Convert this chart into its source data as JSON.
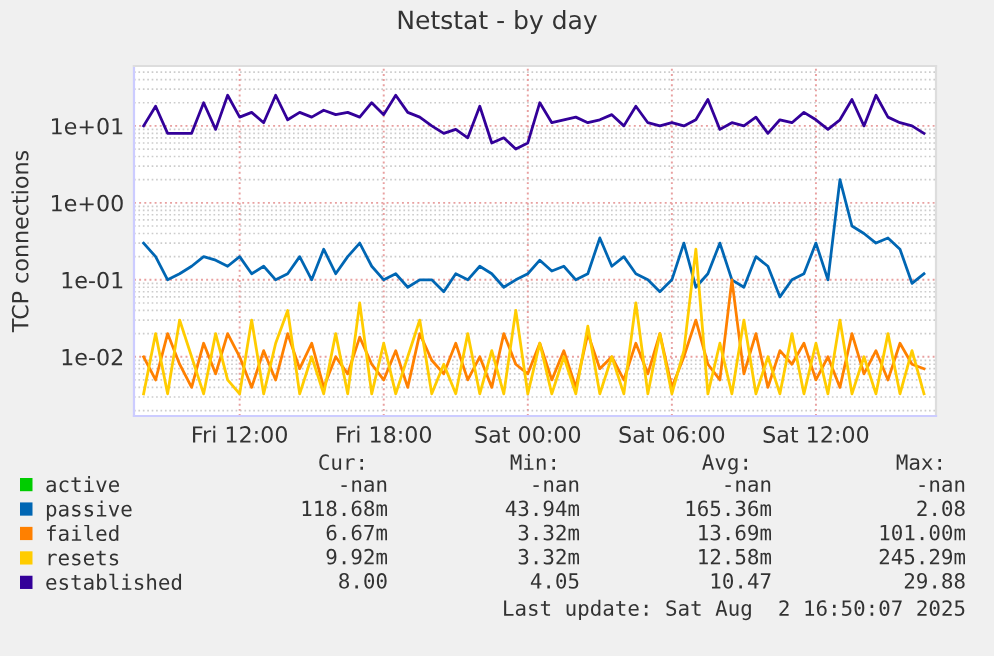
{
  "chart_data": {
    "type": "line",
    "title": "Netstat - by day",
    "ylabel": "TCP connections",
    "log": "y",
    "x": [
      "2025-08-01T08:00",
      "2025-08-01T08:30",
      "2025-08-01T09:00",
      "2025-08-01T09:30",
      "2025-08-01T10:00",
      "2025-08-01T10:30",
      "2025-08-01T11:00",
      "2025-08-01T11:30",
      "2025-08-01T12:00",
      "2025-08-01T12:30",
      "2025-08-01T13:00",
      "2025-08-01T13:30",
      "2025-08-01T14:00",
      "2025-08-01T14:30",
      "2025-08-01T15:00",
      "2025-08-01T15:30",
      "2025-08-01T16:00",
      "2025-08-01T16:30",
      "2025-08-01T17:00",
      "2025-08-01T17:30",
      "2025-08-01T18:00",
      "2025-08-01T18:30",
      "2025-08-01T19:00",
      "2025-08-01T19:30",
      "2025-08-01T20:00",
      "2025-08-01T20:30",
      "2025-08-01T21:00",
      "2025-08-01T21:30",
      "2025-08-01T22:00",
      "2025-08-01T22:30",
      "2025-08-01T23:00",
      "2025-08-01T23:30",
      "2025-08-02T00:00",
      "2025-08-02T00:30",
      "2025-08-02T01:00",
      "2025-08-02T01:30",
      "2025-08-02T02:00",
      "2025-08-02T02:30",
      "2025-08-02T03:00",
      "2025-08-02T03:30",
      "2025-08-02T04:00",
      "2025-08-02T04:30",
      "2025-08-02T05:00",
      "2025-08-02T05:30",
      "2025-08-02T06:00",
      "2025-08-02T06:30",
      "2025-08-02T07:00",
      "2025-08-02T07:30",
      "2025-08-02T08:00",
      "2025-08-02T08:30",
      "2025-08-02T09:00",
      "2025-08-02T09:30",
      "2025-08-02T10:00",
      "2025-08-02T10:30",
      "2025-08-02T11:00",
      "2025-08-02T11:30",
      "2025-08-02T12:00",
      "2025-08-02T12:30",
      "2025-08-02T13:00",
      "2025-08-02T13:30",
      "2025-08-02T14:00",
      "2025-08-02T14:30",
      "2025-08-02T15:00",
      "2025-08-02T15:30",
      "2025-08-02T16:00",
      "2025-08-02T16:30"
    ],
    "xlim": [
      "2025-08-01T07:36",
      "2025-08-02T17:00"
    ],
    "xticks": [
      {
        "value": "2025-08-01T12:00",
        "label": "Fri 12:00"
      },
      {
        "value": "2025-08-01T18:00",
        "label": "Fri 18:00"
      },
      {
        "value": "2025-08-02T00:00",
        "label": "Sat 00:00"
      },
      {
        "value": "2025-08-02T06:00",
        "label": "Sat 06:00"
      },
      {
        "value": "2025-08-02T12:00",
        "label": "Sat 12:00"
      }
    ],
    "ylim": [
      0.0017,
      60
    ],
    "yticks": [
      {
        "value": 0.01,
        "label": "1e-02"
      },
      {
        "value": 0.1,
        "label": "1e-01"
      },
      {
        "value": 1,
        "label": "1e+00"
      },
      {
        "value": 10,
        "label": "1e+01"
      }
    ],
    "grid": true,
    "legend": "bottom",
    "series": [
      {
        "name": "active",
        "color": "#00cc00",
        "values": [
          null,
          null,
          null,
          null,
          null,
          null,
          null,
          null,
          null,
          null,
          null,
          null,
          null,
          null,
          null,
          null,
          null,
          null,
          null,
          null,
          null,
          null,
          null,
          null,
          null,
          null,
          null,
          null,
          null,
          null,
          null,
          null,
          null,
          null,
          null,
          null,
          null,
          null,
          null,
          null,
          null,
          null,
          null,
          null,
          null,
          null,
          null,
          null,
          null,
          null,
          null,
          null,
          null,
          null,
          null,
          null,
          null,
          null,
          null,
          null,
          null,
          null,
          null,
          null,
          null,
          null
        ]
      },
      {
        "name": "passive",
        "color": "#0066b3",
        "values": [
          0.3,
          0.2,
          0.1,
          0.12,
          0.15,
          0.2,
          0.18,
          0.15,
          0.2,
          0.12,
          0.15,
          0.1,
          0.12,
          0.2,
          0.1,
          0.25,
          0.12,
          0.2,
          0.3,
          0.15,
          0.1,
          0.12,
          0.08,
          0.1,
          0.1,
          0.07,
          0.12,
          0.1,
          0.15,
          0.12,
          0.08,
          0.1,
          0.12,
          0.18,
          0.13,
          0.15,
          0.1,
          0.12,
          0.35,
          0.15,
          0.2,
          0.12,
          0.1,
          0.07,
          0.1,
          0.3,
          0.08,
          0.12,
          0.3,
          0.1,
          0.08,
          0.2,
          0.15,
          0.06,
          0.1,
          0.12,
          0.3,
          0.1,
          2.0,
          0.5,
          0.4,
          0.3,
          0.35,
          0.25,
          0.09,
          0.12
        ]
      },
      {
        "name": "failed",
        "color": "#ff8000",
        "values": [
          0.01,
          0.005,
          0.02,
          0.008,
          0.004,
          0.015,
          0.006,
          0.02,
          0.01,
          0.004,
          0.012,
          0.005,
          0.02,
          0.007,
          0.015,
          0.004,
          0.01,
          0.006,
          0.018,
          0.008,
          0.005,
          0.012,
          0.004,
          0.02,
          0.009,
          0.006,
          0.015,
          0.005,
          0.01,
          0.004,
          0.02,
          0.008,
          0.006,
          0.015,
          0.005,
          0.012,
          0.004,
          0.02,
          0.007,
          0.01,
          0.005,
          0.015,
          0.006,
          0.02,
          0.004,
          0.01,
          0.03,
          0.008,
          0.005,
          0.1,
          0.006,
          0.02,
          0.004,
          0.012,
          0.008,
          0.015,
          0.005,
          0.01,
          0.004,
          0.02,
          0.006,
          0.012,
          0.005,
          0.015,
          0.008,
          0.007
        ]
      },
      {
        "name": "resets",
        "color": "#ffcc00",
        "values": [
          0.0033,
          0.02,
          0.0033,
          0.03,
          0.01,
          0.0033,
          0.02,
          0.005,
          0.0033,
          0.03,
          0.0033,
          0.015,
          0.04,
          0.0033,
          0.01,
          0.0033,
          0.02,
          0.0033,
          0.05,
          0.0033,
          0.015,
          0.0033,
          0.01,
          0.03,
          0.0033,
          0.008,
          0.0033,
          0.02,
          0.0033,
          0.012,
          0.0033,
          0.04,
          0.0033,
          0.015,
          0.0033,
          0.01,
          0.0033,
          0.025,
          0.0033,
          0.01,
          0.0033,
          0.05,
          0.0033,
          0.02,
          0.0033,
          0.012,
          0.25,
          0.0033,
          0.015,
          0.0033,
          0.03,
          0.0033,
          0.01,
          0.0033,
          0.02,
          0.0033,
          0.015,
          0.0033,
          0.03,
          0.0033,
          0.01,
          0.0033,
          0.02,
          0.0033,
          0.012,
          0.0033
        ]
      },
      {
        "name": "established",
        "color": "#330099",
        "values": [
          10,
          18,
          8,
          8,
          8,
          20,
          9,
          25,
          13,
          15,
          11,
          25,
          12,
          15,
          13,
          16,
          14,
          15,
          13,
          20,
          14,
          25,
          15,
          13,
          10,
          8,
          9,
          7,
          18,
          6,
          7,
          5,
          6,
          20,
          11,
          12,
          13,
          11,
          12,
          14,
          10,
          18,
          11,
          10,
          11,
          10,
          12,
          22,
          9,
          11,
          10,
          13,
          8,
          12,
          11,
          15,
          12,
          9,
          12,
          22,
          10,
          25,
          13,
          11,
          10,
          8
        ]
      }
    ],
    "annotations": [
      "Cur:",
      "Min:",
      "Avg:",
      "Max:",
      "-nan",
      "-nan",
      "-nan",
      "-nan",
      "118.68m",
      "43.94m",
      "165.36m",
      "2.08",
      "6.67m",
      "3.32m",
      "13.69m",
      "101.00m",
      "9.92m",
      "3.32m",
      "12.58m",
      "245.29m",
      "8.00",
      "4.05",
      "10.47",
      "29.88",
      "Last update: Sat Aug  2 16:50:07 2025"
    ]
  }
}
